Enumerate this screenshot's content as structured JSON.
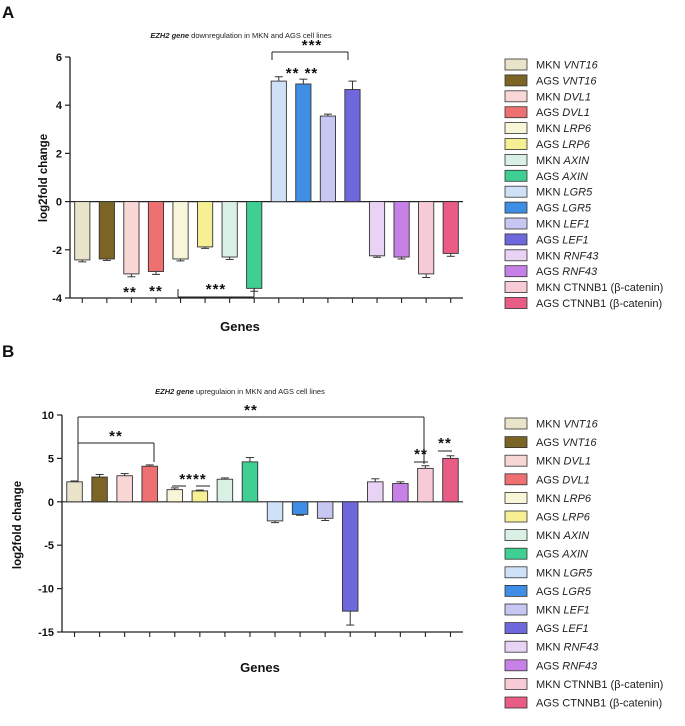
{
  "figure": {
    "panel_a_letter": "A",
    "panel_b_letter": "B"
  },
  "legend": [
    {
      "label": "MKN",
      "gene": "VNT16",
      "suffix": "",
      "color": "#e9e3c9"
    },
    {
      "label": "AGS",
      "gene": "VNT16",
      "suffix": "",
      "color": "#7b6426"
    },
    {
      "label": "MKN",
      "gene": "DVL1",
      "suffix": "",
      "color": "#f9d7d7"
    },
    {
      "label": "AGS",
      "gene": "DVL1",
      "suffix": "",
      "color": "#ee7070"
    },
    {
      "label": "MKN",
      "gene": "LRP6",
      "suffix": "",
      "color": "#f8f6d8"
    },
    {
      "label": "AGS",
      "gene": "LRP6",
      "suffix": "",
      "color": "#f6ef94"
    },
    {
      "label": "MKN",
      "gene": "AXIN",
      "suffix": "",
      "color": "#d9f1e5"
    },
    {
      "label": "AGS",
      "gene": "AXIN",
      "suffix": "",
      "color": "#3fcf92"
    },
    {
      "label": "MKN",
      "gene": "LGR5",
      "suffix": "",
      "color": "#cfe1f7"
    },
    {
      "label": "AGS",
      "gene": "LGR5",
      "suffix": "",
      "color": "#3f8ee6"
    },
    {
      "label": "MKN",
      "gene": "LEF1",
      "suffix": "",
      "color": "#c8c6f2"
    },
    {
      "label": "AGS",
      "gene": "LEF1",
      "suffix": "",
      "color": "#6e68dc"
    },
    {
      "label": "MKN",
      "gene": "RNF43",
      "suffix": "",
      "color": "#e9d3f4"
    },
    {
      "label": "AGS",
      "gene": "RNF43",
      "suffix": "",
      "color": "#c781e6"
    },
    {
      "label": "MKN",
      "gene": "",
      "suffix": "CTNNB1 (β-catenin)",
      "color": "#f7cbd5"
    },
    {
      "label": "AGS",
      "gene": "",
      "suffix": "CTNNB1 (β-catenin)",
      "color": "#e85c85"
    }
  ],
  "chart_data": [
    {
      "type": "bar",
      "panel": "A",
      "title_gene": "EZH2 gene",
      "title_rest": " downregulation in MKN and AGS cell lines",
      "xlabel": "Genes",
      "ylabel": "log2fold change",
      "ylim": [
        -4,
        6
      ],
      "yticks": [
        -4,
        -2,
        0,
        2,
        4,
        6
      ],
      "values": [
        -2.42,
        -2.38,
        -3.0,
        -2.9,
        -2.38,
        -1.88,
        -2.3,
        -3.6,
        5.0,
        4.88,
        3.55,
        4.65,
        -2.25,
        -2.3,
        -3.0,
        -2.15
      ],
      "errors": [
        0.08,
        0.06,
        0.12,
        0.12,
        0.08,
        0.06,
        0.1,
        0.12,
        0.18,
        0.2,
        0.08,
        0.35,
        0.06,
        0.08,
        0.15,
        0.12
      ],
      "annotations": {
        "sig_lower_left": "**",
        "sig_lower_right": "**",
        "sig_bracket_lower": "***",
        "sig_bracket_upper": "***",
        "sig_upper_stars": "** **"
      }
    },
    {
      "type": "bar",
      "panel": "B",
      "title_gene": "EZH2 gene",
      "title_rest": " upregulaion in MKN and AGS cell lines",
      "xlabel": "Genes",
      "ylabel": "log2fold change",
      "ylim": [
        -15,
        10
      ],
      "yticks": [
        -15,
        -10,
        -5,
        0,
        5,
        10
      ],
      "values": [
        2.3,
        2.85,
        3.0,
        4.1,
        1.4,
        1.25,
        2.6,
        4.6,
        -2.2,
        -1.45,
        -1.9,
        -12.6,
        2.3,
        2.1,
        3.85,
        5.0
      ],
      "errors": [
        0.1,
        0.3,
        0.25,
        0.15,
        0.2,
        0.1,
        0.15,
        0.5,
        0.2,
        0.1,
        0.25,
        1.6,
        0.35,
        0.2,
        0.3,
        0.3
      ],
      "annotations": {
        "sig_bracket_1": "**",
        "sig_bracket_2": "**",
        "sig_stars_lrp6": "****",
        "sig_stars_ctnnb1_mkn": "**",
        "sig_stars_ctnnb1_ags": "**"
      }
    }
  ]
}
